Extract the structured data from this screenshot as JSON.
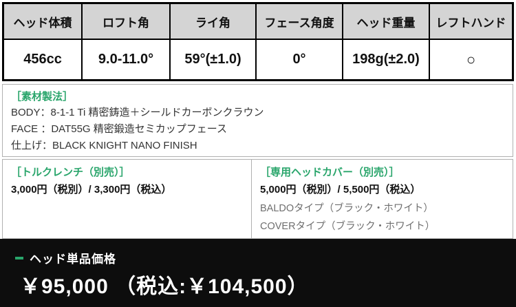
{
  "colors": {
    "green": "#29a56b",
    "header_bg": "#d4d4d4",
    "bar_bg": "#0d0d0d",
    "border_gray": "#b0b0b0",
    "text_muted": "#6f6f6f"
  },
  "spec_table": {
    "headers": [
      "ヘッド体積",
      "ロフト角",
      "ライ角",
      "フェース角度",
      "ヘッド重量",
      "レフトハンド"
    ],
    "values": [
      "456cc",
      "9.0-11.0°",
      "59°(±1.0)",
      "0°",
      "198g(±2.0)",
      "○"
    ]
  },
  "materials": {
    "title": "［素材製法］",
    "lines": [
      "BODY：8-1-1 Ti 精密鋳造＋シールドカーボンクラウン",
      "FACE ：DAT55G 精密鍛造セミカップフェース",
      "仕上げ：BLACK KNIGHT NANO FINISH"
    ]
  },
  "torque_wrench": {
    "title": "［トルクレンチ（別売）］",
    "price": "3,000円（税別）/ 3,300円（税込）"
  },
  "head_cover": {
    "title": "［専用ヘッドカバー（別売）］",
    "price": "5,000円（税別）/ 5,500円（税込）",
    "options": [
      "BALDOタイプ（ブラック・ホワイト）",
      "COVERタイプ（ブラック・ホワイト）"
    ]
  },
  "price_bar": {
    "label": "ヘッド単品価格",
    "price": "￥95,000 （税込:￥104,500）"
  }
}
